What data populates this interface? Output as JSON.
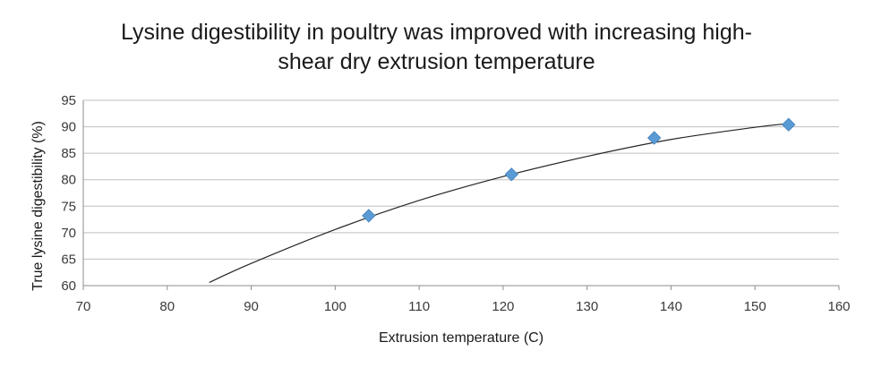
{
  "chart_data": {
    "type": "scatter",
    "title_line1": "Lysine digestibility in poultry was improved with increasing high-",
    "title_line2": "shear dry extrusion temperature",
    "xlabel": "Extrusion temperature (C)",
    "ylabel": "True lysine digestibility (%)",
    "xlim": [
      70,
      160
    ],
    "ylim": [
      60,
      95
    ],
    "xticks": [
      70,
      80,
      90,
      100,
      110,
      120,
      130,
      140,
      150,
      160
    ],
    "yticks": [
      60,
      65,
      70,
      75,
      80,
      85,
      90,
      95
    ],
    "grid": "horizontal",
    "legend": "none",
    "series": [
      {
        "marker": "diamond",
        "color": "#5b9bd5",
        "x": [
          104,
          121,
          138,
          154
        ],
        "y": [
          73.2,
          81.0,
          87.9,
          90.4
        ]
      }
    ],
    "trendline": {
      "type": "polynomial-2",
      "color": "#262626",
      "x": [
        85,
        90,
        100,
        110,
        120,
        130,
        140,
        150,
        154
      ],
      "y": [
        60.6,
        64.2,
        70.6,
        76.1,
        80.6,
        84.4,
        87.6,
        89.9,
        90.6
      ]
    }
  }
}
